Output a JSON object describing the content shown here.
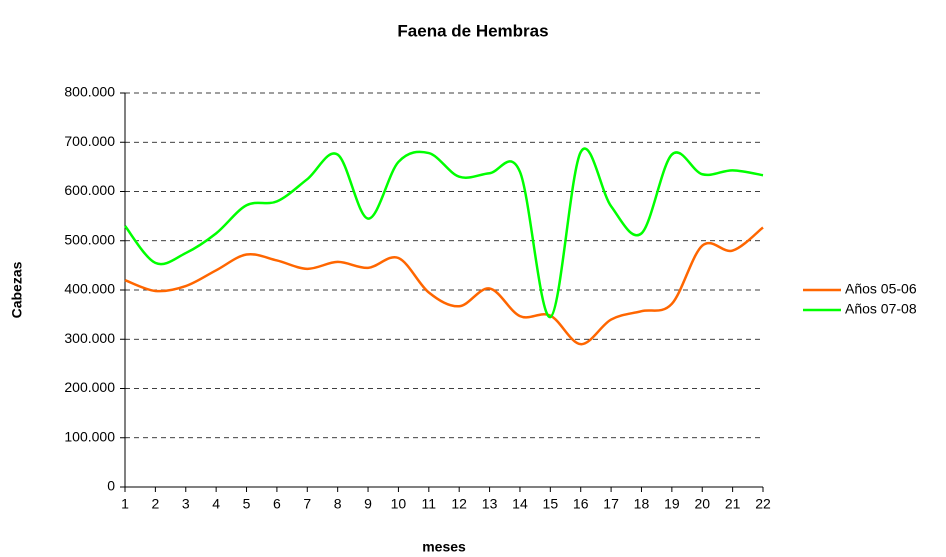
{
  "chart_data": {
    "type": "line",
    "title": "Faena de Hembras",
    "x_label": "meses",
    "y_label": "Cabezas",
    "categories": [
      "1",
      "2",
      "3",
      "4",
      "5",
      "6",
      "7",
      "8",
      "9",
      "10",
      "11",
      "12",
      "13",
      "14",
      "15",
      "16",
      "17",
      "18",
      "19",
      "20",
      "21",
      "22"
    ],
    "series": [
      {
        "name": "Años 05-06",
        "color": "#ff6600",
        "values": [
          420000,
          398000,
          408000,
          440000,
          472000,
          460000,
          443000,
          457000,
          445000,
          465000,
          395000,
          367000,
          403000,
          347000,
          348000,
          290000,
          340000,
          357000,
          372000,
          490000,
          480000,
          527000
        ]
      },
      {
        "name": "Años 07-08",
        "color": "#00ff00",
        "values": [
          530000,
          455000,
          475000,
          515000,
          572000,
          580000,
          625000,
          675000,
          545000,
          660000,
          678000,
          630000,
          637000,
          640000,
          345000,
          680000,
          570000,
          515000,
          675000,
          635000,
          643000,
          633000
        ]
      }
    ],
    "ylim": [
      0,
      800000
    ],
    "yticks": [
      0,
      {
        "value": 100000,
        "label": "100.000"
      },
      {
        "value": 200000,
        "label": "200.000"
      },
      {
        "value": 300000,
        "label": "300.000"
      },
      {
        "value": 400000,
        "label": "400.000"
      },
      {
        "value": 500000,
        "label": "500.000"
      },
      {
        "value": 600000,
        "label": "600.000"
      },
      {
        "value": 700000,
        "label": "700.000"
      },
      {
        "value": 800000,
        "label": "800.000"
      }
    ],
    "grid": true,
    "legend": "right"
  }
}
